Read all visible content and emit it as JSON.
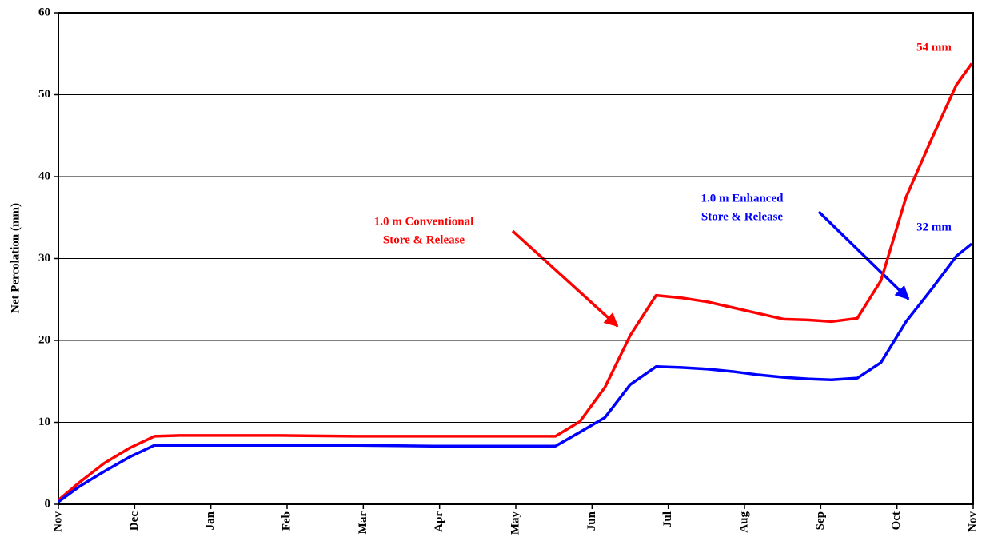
{
  "chart_data": {
    "type": "line",
    "y_label": "Net Percolation (mm)",
    "x": [
      0,
      0.28,
      0.6,
      0.94,
      1.26,
      1.59,
      1.9,
      2.9,
      3.9,
      4.9,
      5.9,
      6.52,
      6.84,
      7.17,
      7.5,
      7.84,
      8.17,
      8.52,
      8.85,
      9.18,
      9.51,
      9.83,
      10.14,
      10.48,
      10.79,
      11.12,
      11.45,
      11.78,
      11.98
    ],
    "series": [
      {
        "name": "1.0 m Conventional Store & Release",
        "color": "#ff0000",
        "values": [
          0.5,
          2.7,
          5.0,
          6.9,
          8.3,
          8.4,
          8.4,
          8.4,
          8.3,
          8.3,
          8.3,
          8.3,
          10.1,
          14.3,
          20.6,
          25.5,
          25.2,
          24.7,
          24.0,
          23.3,
          22.6,
          22.5,
          22.3,
          22.7,
          27.3,
          37.5,
          44.5,
          51.2,
          53.8
        ]
      },
      {
        "name": "1.0 m Enhanced Store & Release",
        "color": "#0000ff",
        "values": [
          0.3,
          2.2,
          4.0,
          5.8,
          7.2,
          7.2,
          7.2,
          7.2,
          7.2,
          7.1,
          7.1,
          7.1,
          8.8,
          10.6,
          14.6,
          16.8,
          16.7,
          16.5,
          16.2,
          15.8,
          15.5,
          15.3,
          15.2,
          15.4,
          17.3,
          22.3,
          26.2,
          30.3,
          31.8
        ]
      }
    ],
    "xlim": [
      0,
      12
    ],
    "xticks": [
      {
        "value": 0,
        "label": "Nov"
      },
      {
        "value": 1,
        "label": "Dec"
      },
      {
        "value": 2,
        "label": "Jan"
      },
      {
        "value": 3,
        "label": "Feb"
      },
      {
        "value": 4,
        "label": "Mar"
      },
      {
        "value": 5,
        "label": "Apr"
      },
      {
        "value": 6,
        "label": "May"
      },
      {
        "value": 7,
        "label": "Jun"
      },
      {
        "value": 8,
        "label": "Jul"
      },
      {
        "value": 9,
        "label": "Aug"
      },
      {
        "value": 10,
        "label": "Sep"
      },
      {
        "value": 11,
        "label": "Oct"
      },
      {
        "value": 12,
        "label": "Nov"
      }
    ],
    "ylim": [
      0,
      60
    ],
    "yticks": [
      0,
      10,
      20,
      30,
      40,
      50,
      60
    ],
    "grid": true,
    "annotations": [
      {
        "lines": [
          "1.0 m Conventional",
          "Store & Release"
        ],
        "color": "#ff0000"
      },
      {
        "lines": [
          "1.0 m Enhanced",
          "Store & Release"
        ],
        "color": "#0000ff"
      },
      {
        "lines": [
          "54 mm"
        ],
        "color": "#ff0000"
      },
      {
        "lines": [
          "32 mm"
        ],
        "color": "#0000ff"
      }
    ]
  }
}
